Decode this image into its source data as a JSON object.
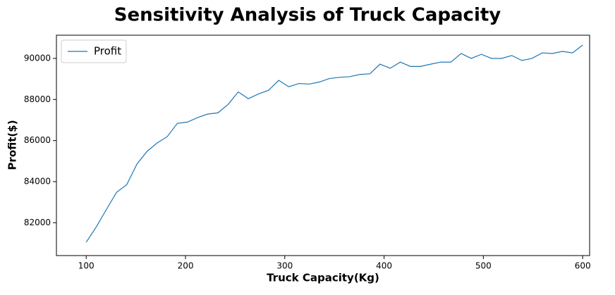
{
  "chart_data": {
    "type": "line",
    "title": "Sensitivity Analysis of Truck Capacity",
    "x_label": "Truck Capacity(Kg)",
    "y_label": "Profit($)",
    "x": [
      100,
      110.2,
      120.4,
      130.6,
      140.8,
      151.0,
      161.2,
      171.4,
      181.6,
      191.8,
      202.0,
      212.2,
      222.4,
      232.7,
      242.9,
      253.1,
      263.3,
      273.5,
      283.7,
      293.9,
      304.1,
      314.3,
      324.5,
      334.7,
      344.9,
      355.1,
      365.3,
      375.5,
      385.7,
      395.9,
      406.1,
      416.3,
      426.5,
      436.7,
      446.9,
      457.1,
      467.3,
      477.6,
      487.8,
      498.0,
      508.2,
      518.4,
      528.6,
      538.8,
      549.0,
      559.2,
      569.4,
      579.6,
      589.8,
      600
    ],
    "series": [
      {
        "name": "Profit",
        "color": "#1f77b4",
        "values": [
          81050,
          81800,
          82650,
          83480,
          83850,
          84850,
          85470,
          85880,
          86190,
          86840,
          86900,
          87120,
          87290,
          87350,
          87760,
          88370,
          88040,
          88270,
          88450,
          88930,
          88620,
          88780,
          88750,
          88850,
          89020,
          89080,
          89110,
          89220,
          89250,
          89720,
          89520,
          89820,
          89610,
          89610,
          89720,
          89820,
          89820,
          90240,
          90000,
          90200,
          90000,
          90000,
          90140,
          89900,
          90000,
          90270,
          90240,
          90340,
          90270,
          90650
        ]
      }
    ],
    "xlim": [
      70,
      607
    ],
    "xticks": [
      100,
      200,
      300,
      400,
      500,
      600
    ],
    "ylim": [
      80400,
      91130
    ],
    "yticks": [
      82000,
      84000,
      86000,
      88000,
      90000
    ],
    "grid": false,
    "legend": "upper-left"
  }
}
